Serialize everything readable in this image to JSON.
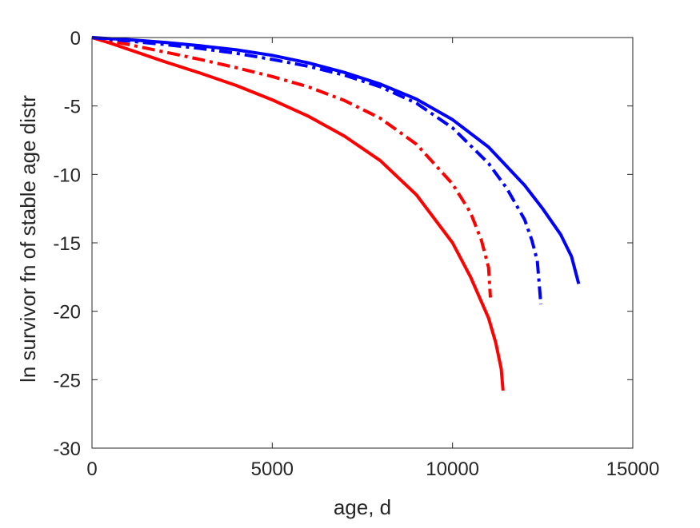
{
  "chart_data": {
    "type": "line",
    "title": "",
    "xlabel": "age, d",
    "ylabel": "ln survivor fn of stable age distr",
    "xlim": [
      0,
      15000
    ],
    "ylim": [
      -30,
      0
    ],
    "xticks": [
      0,
      5000,
      10000,
      15000
    ],
    "xtick_labels": [
      "0",
      "5000",
      "10000",
      "15000"
    ],
    "yticks": [
      0,
      -5,
      -10,
      -15,
      -20,
      -25,
      -30
    ],
    "ytick_labels": [
      "0",
      "-5",
      "-10",
      "-15",
      "-20",
      "-25",
      "-30"
    ],
    "grid": false,
    "legend": "none",
    "series": [
      {
        "color": "#ff0000",
        "style": "solid",
        "x": [
          0,
          500,
          1000,
          2000,
          3000,
          4000,
          5000,
          6000,
          7000,
          8000,
          9000,
          10000,
          10500,
          11000,
          11200,
          11350,
          11400
        ],
        "y": [
          0,
          -0.4,
          -0.85,
          -1.75,
          -2.6,
          -3.5,
          -4.55,
          -5.75,
          -7.2,
          -9.0,
          -11.5,
          -15.0,
          -17.5,
          -20.5,
          -22.3,
          -24.2,
          -25.8
        ]
      },
      {
        "color": "#ff0000",
        "style": "dashdot",
        "x": [
          0,
          1000,
          2000,
          3000,
          4000,
          5000,
          6000,
          7000,
          8000,
          9000,
          10000,
          10500,
          10800,
          11000,
          11050
        ],
        "y": [
          0,
          -0.5,
          -1.05,
          -1.6,
          -2.2,
          -2.85,
          -3.6,
          -4.6,
          -5.9,
          -7.8,
          -10.7,
          -12.8,
          -14.8,
          -16.8,
          -19.0
        ]
      },
      {
        "color": "#0000ff",
        "style": "solid",
        "x": [
          0,
          1000,
          2000,
          3000,
          4000,
          5000,
          6000,
          7000,
          8000,
          9000,
          10000,
          11000,
          12000,
          12500,
          13000,
          13300,
          13500
        ],
        "y": [
          0,
          -0.15,
          -0.35,
          -0.6,
          -0.9,
          -1.3,
          -1.85,
          -2.55,
          -3.4,
          -4.5,
          -6.0,
          -8.0,
          -10.8,
          -12.5,
          -14.4,
          -16.0,
          -18.0
        ]
      },
      {
        "color": "#0000ff",
        "style": "dashdot",
        "x": [
          0,
          1000,
          2000,
          3000,
          4000,
          5000,
          6000,
          7000,
          8000,
          9000,
          10000,
          11000,
          11500,
          12000,
          12200,
          12350,
          12450
        ],
        "y": [
          0,
          -0.25,
          -0.5,
          -0.8,
          -1.15,
          -1.6,
          -2.1,
          -2.75,
          -3.6,
          -4.8,
          -6.6,
          -9.2,
          -11.0,
          -13.3,
          -14.8,
          -16.3,
          -19.5
        ]
      }
    ]
  }
}
